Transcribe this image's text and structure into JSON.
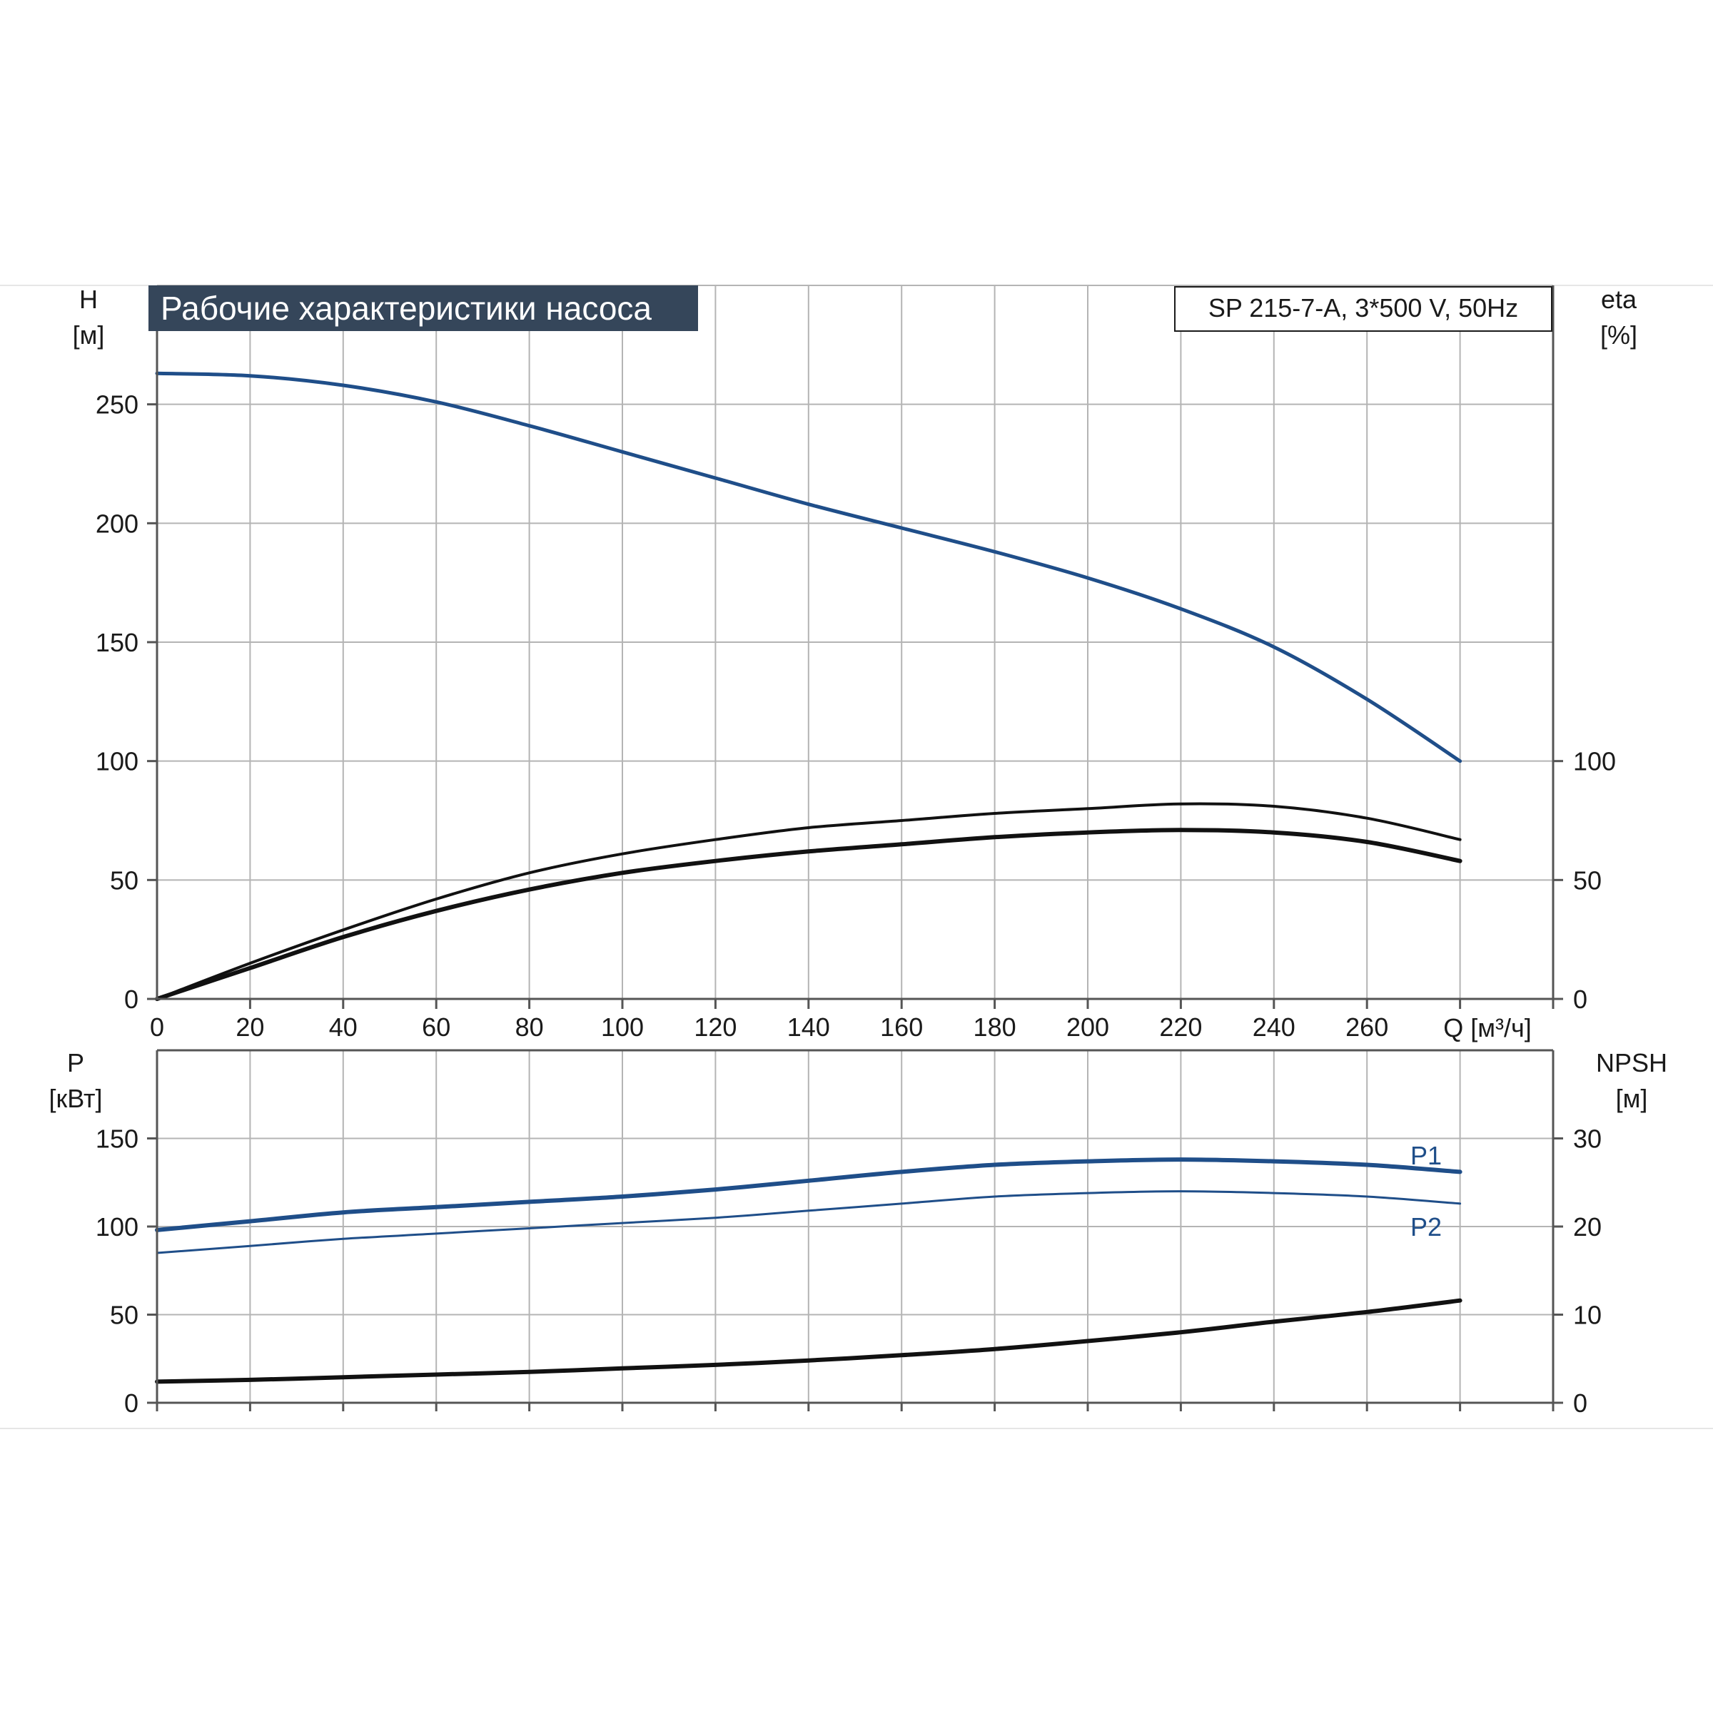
{
  "colors": {
    "blue": "#1f4e89",
    "black": "#111111",
    "title_bg": "#35465a",
    "grid": "#b4b4b4",
    "rule": "#e6e6e6"
  },
  "header": {
    "title": "Рабочие характеристики насоса",
    "model": "SP 215-7-A, 3*500 V, 50Hz"
  },
  "chart_data": [
    {
      "type": "line",
      "name": "upper-panel",
      "xlabel": "Q [м³/ч]",
      "xlim": [
        0,
        300
      ],
      "x_ticks": [
        0,
        20,
        40,
        60,
        80,
        100,
        120,
        140,
        160,
        180,
        200,
        220,
        240,
        260
      ],
      "x_tick_labels": [
        "0",
        "20",
        "40",
        "60",
        "80",
        "100",
        "120",
        "140",
        "160",
        "180",
        "200",
        "220",
        "240",
        "260"
      ],
      "ylabel_left": {
        "name": "H",
        "unit": "[м]"
      },
      "ylim_left": [
        0,
        300
      ],
      "y_ticks_left": [
        0,
        50,
        100,
        150,
        200,
        250
      ],
      "y_tick_labels_left": [
        "0",
        "50",
        "100",
        "150",
        "200",
        "250"
      ],
      "ylabel_right": {
        "name": "eta",
        "unit": "[%]"
      },
      "ylim_right": [
        0,
        300
      ],
      "y_ticks_right": [
        0,
        50,
        100
      ],
      "y_tick_labels_right": [
        "0",
        "50",
        "100"
      ],
      "grid": true,
      "series": [
        {
          "key": "head",
          "axis": "left",
          "color": "#1f4e89",
          "width": 5,
          "points": [
            [
              0,
              263
            ],
            [
              20,
              262
            ],
            [
              40,
              258
            ],
            [
              60,
              251
            ],
            [
              80,
              241
            ],
            [
              100,
              230
            ],
            [
              120,
              219
            ],
            [
              140,
              208
            ],
            [
              160,
              198
            ],
            [
              180,
              188
            ],
            [
              200,
              177
            ],
            [
              220,
              164
            ],
            [
              240,
              148
            ],
            [
              260,
              126
            ],
            [
              280,
              100
            ]
          ]
        },
        {
          "key": "eta-pump",
          "axis": "right",
          "color": "#111111",
          "width": 4,
          "points": [
            [
              0,
              0
            ],
            [
              20,
              15
            ],
            [
              40,
              29
            ],
            [
              60,
              42
            ],
            [
              80,
              53
            ],
            [
              100,
              61
            ],
            [
              120,
              67
            ],
            [
              140,
              72
            ],
            [
              160,
              75
            ],
            [
              180,
              78
            ],
            [
              200,
              80
            ],
            [
              220,
              82
            ],
            [
              240,
              81
            ],
            [
              260,
              76
            ],
            [
              280,
              67
            ]
          ]
        },
        {
          "key": "eta-total",
          "axis": "right",
          "color": "#111111",
          "width": 6,
          "points": [
            [
              0,
              0
            ],
            [
              20,
              13
            ],
            [
              40,
              26
            ],
            [
              60,
              37
            ],
            [
              80,
              46
            ],
            [
              100,
              53
            ],
            [
              120,
              58
            ],
            [
              140,
              62
            ],
            [
              160,
              65
            ],
            [
              180,
              68
            ],
            [
              200,
              70
            ],
            [
              220,
              71
            ],
            [
              240,
              70
            ],
            [
              260,
              66
            ],
            [
              280,
              58
            ]
          ]
        }
      ]
    },
    {
      "type": "line",
      "name": "lower-panel",
      "xlim": [
        0,
        300
      ],
      "x_ticks": [
        0,
        20,
        40,
        60,
        80,
        100,
        120,
        140,
        160,
        180,
        200,
        220,
        240,
        260,
        280,
        300
      ],
      "ylabel_left": {
        "name": "P",
        "unit": "[кВт]"
      },
      "ylim_left": [
        0,
        200
      ],
      "y_ticks_left": [
        0,
        50,
        100,
        150
      ],
      "y_tick_labels_left": [
        "0",
        "50",
        "100",
        "150"
      ],
      "ylabel_right": {
        "name": "NPSH",
        "unit": "[м]"
      },
      "ylim_right": [
        0,
        40
      ],
      "y_ticks_right": [
        0,
        10,
        20,
        30
      ],
      "y_tick_labels_right": [
        "0",
        "10",
        "20",
        "30"
      ],
      "grid": true,
      "series": [
        {
          "key": "P1",
          "name": "P1",
          "axis": "left",
          "color": "#1f4e89",
          "width": 6,
          "points": [
            [
              0,
              98
            ],
            [
              20,
              103
            ],
            [
              40,
              108
            ],
            [
              60,
              111
            ],
            [
              80,
              114
            ],
            [
              100,
              117
            ],
            [
              120,
              121
            ],
            [
              140,
              126
            ],
            [
              160,
              131
            ],
            [
              180,
              135
            ],
            [
              200,
              137
            ],
            [
              220,
              138
            ],
            [
              240,
              137
            ],
            [
              260,
              135
            ],
            [
              280,
              131
            ]
          ]
        },
        {
          "key": "P2",
          "name": "P2",
          "axis": "left",
          "color": "#1f4e89",
          "width": 3,
          "points": [
            [
              0,
              85
            ],
            [
              20,
              89
            ],
            [
              40,
              93
            ],
            [
              60,
              96
            ],
            [
              80,
              99
            ],
            [
              100,
              102
            ],
            [
              120,
              105
            ],
            [
              140,
              109
            ],
            [
              160,
              113
            ],
            [
              180,
              117
            ],
            [
              200,
              119
            ],
            [
              220,
              120
            ],
            [
              240,
              119
            ],
            [
              260,
              117
            ],
            [
              280,
              113
            ]
          ]
        },
        {
          "key": "npsh",
          "axis": "right",
          "color": "#111111",
          "width": 6,
          "points": [
            [
              0,
              2.4
            ],
            [
              20,
              2.6
            ],
            [
              40,
              2.9
            ],
            [
              60,
              3.2
            ],
            [
              80,
              3.5
            ],
            [
              100,
              3.9
            ],
            [
              120,
              4.3
            ],
            [
              140,
              4.8
            ],
            [
              160,
              5.4
            ],
            [
              180,
              6.1
            ],
            [
              200,
              7.0
            ],
            [
              220,
              8.0
            ],
            [
              240,
              9.2
            ],
            [
              260,
              10.3
            ],
            [
              280,
              11.6
            ]
          ]
        }
      ]
    }
  ]
}
